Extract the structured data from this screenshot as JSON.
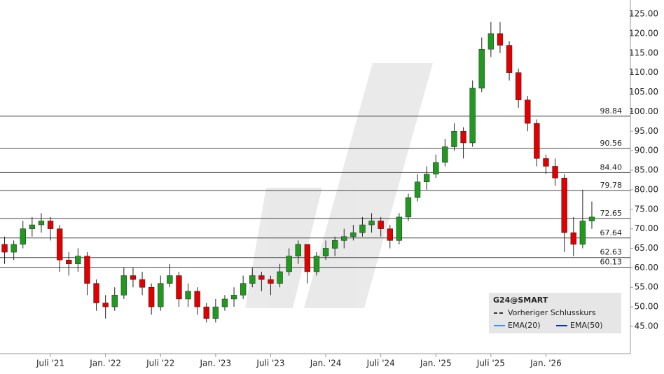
{
  "chart_data": {
    "type": "candlestick",
    "x": [
      0,
      1,
      2,
      3,
      4,
      5,
      6,
      7,
      8,
      9,
      10,
      11,
      12,
      13,
      14,
      15,
      16,
      17,
      18,
      19,
      20,
      21,
      22,
      23,
      24,
      25,
      26,
      27,
      28,
      29,
      30,
      31,
      32,
      33,
      34,
      35,
      36,
      37,
      38,
      39,
      40,
      41,
      42,
      43,
      44,
      45,
      46,
      47,
      48,
      49,
      50,
      51,
      52,
      53,
      54,
      55,
      56,
      57,
      58,
      59,
      60,
      61,
      62,
      63,
      64
    ],
    "open": [
      66,
      64,
      66,
      70,
      71,
      72,
      70,
      62,
      61,
      63,
      56,
      51,
      50,
      53,
      58,
      57,
      55,
      50,
      56,
      58,
      52,
      54,
      50,
      47,
      50,
      52,
      53,
      56,
      58,
      57,
      56,
      59,
      63,
      66,
      59,
      63,
      65,
      67,
      68,
      69,
      71,
      72,
      70,
      67,
      73,
      78,
      82,
      84,
      87,
      91,
      95,
      92,
      106,
      116,
      120,
      117,
      110,
      103,
      97,
      88,
      86,
      83,
      69,
      66,
      72
    ],
    "high": [
      68,
      67,
      72,
      73,
      74,
      73,
      71,
      64,
      65,
      64,
      57,
      53,
      55,
      60,
      60,
      59,
      56,
      58,
      61,
      59,
      56,
      55,
      51,
      52,
      53,
      55,
      58,
      60,
      59,
      58,
      61,
      65,
      67,
      66,
      64,
      67,
      68,
      70,
      71,
      73,
      74,
      73,
      71,
      74,
      79,
      84,
      86,
      89,
      93,
      97,
      96,
      108,
      119,
      123,
      123,
      118,
      111,
      104,
      98,
      89,
      88,
      84,
      73,
      80,
      77
    ],
    "low": [
      61,
      62,
      65,
      68,
      69,
      67,
      59,
      58,
      59,
      53,
      49,
      47,
      49,
      52,
      55,
      53,
      48,
      49,
      55,
      50,
      50,
      48,
      46,
      46,
      49,
      50,
      52,
      55,
      54,
      53,
      55,
      58,
      61,
      56,
      58,
      62,
      63,
      65,
      67,
      68,
      69,
      68,
      65,
      66,
      72,
      77,
      80,
      83,
      86,
      90,
      88,
      91,
      105,
      114,
      115,
      108,
      101,
      95,
      86,
      84,
      81,
      64,
      63,
      65,
      70
    ],
    "close": [
      64,
      66,
      70,
      71,
      72,
      70,
      62,
      61,
      63,
      56,
      51,
      50,
      53,
      58,
      57,
      55,
      50,
      56,
      58,
      52,
      54,
      50,
      47,
      50,
      52,
      53,
      56,
      58,
      57,
      56,
      59,
      63,
      66,
      59,
      63,
      65,
      67,
      68,
      69,
      71,
      72,
      70,
      67,
      73,
      78,
      82,
      84,
      87,
      91,
      95,
      92,
      106,
      116,
      120,
      117,
      110,
      103,
      97,
      88,
      86,
      83,
      69,
      66,
      72,
      73
    ],
    "up_color": "#1f9a1f",
    "down_color": "#e00000",
    "xlim": [
      -0.5,
      68.2
    ],
    "xticks": [
      {
        "value": 5,
        "label": "Juli '21"
      },
      {
        "value": 11,
        "label": "Jan. '22"
      },
      {
        "value": 17,
        "label": "Juli '22"
      },
      {
        "value": 23,
        "label": "Jan. '23"
      },
      {
        "value": 29,
        "label": "Juli '23"
      },
      {
        "value": 35,
        "label": "Jan. '24"
      },
      {
        "value": 41,
        "label": "Juli '24"
      },
      {
        "value": 47,
        "label": "Jan. '25"
      },
      {
        "value": 53,
        "label": "Juli '25"
      },
      {
        "value": 59,
        "label": "Jan. '26"
      }
    ],
    "ylim": [
      38,
      127.7
    ],
    "yticks": [
      {
        "value": 45,
        "label": "45.00"
      },
      {
        "value": 50,
        "label": "50.00"
      },
      {
        "value": 55,
        "label": "55.00"
      },
      {
        "value": 60,
        "label": "60.00"
      },
      {
        "value": 65,
        "label": "65.00"
      },
      {
        "value": 70,
        "label": "70.00"
      },
      {
        "value": 75,
        "label": "75.00"
      },
      {
        "value": 80,
        "label": "80.00"
      },
      {
        "value": 85,
        "label": "85.00"
      },
      {
        "value": 90,
        "label": "90.00"
      },
      {
        "value": 95,
        "label": "95.00"
      },
      {
        "value": 100,
        "label": "100.00"
      },
      {
        "value": 105,
        "label": "105.00"
      },
      {
        "value": 110,
        "label": "110.00"
      },
      {
        "value": 115,
        "label": "115.00"
      },
      {
        "value": 120,
        "label": "120.00"
      },
      {
        "value": 125,
        "label": "125.00"
      }
    ],
    "levels": [
      98.84,
      90.56,
      {
        "value": 84.4,
        "label": "84.40"
      },
      79.78,
      72.65,
      67.64,
      62.63,
      60.13
    ],
    "legend": {
      "title": "G24@SMART",
      "items": [
        {
          "name": "Vorheriger Schlusskurs",
          "color": "#333333"
        },
        {
          "name": "EMA(20)",
          "color": "#3399ff"
        },
        {
          "name": "EMA(50)",
          "color": "#0033cc"
        }
      ]
    }
  }
}
